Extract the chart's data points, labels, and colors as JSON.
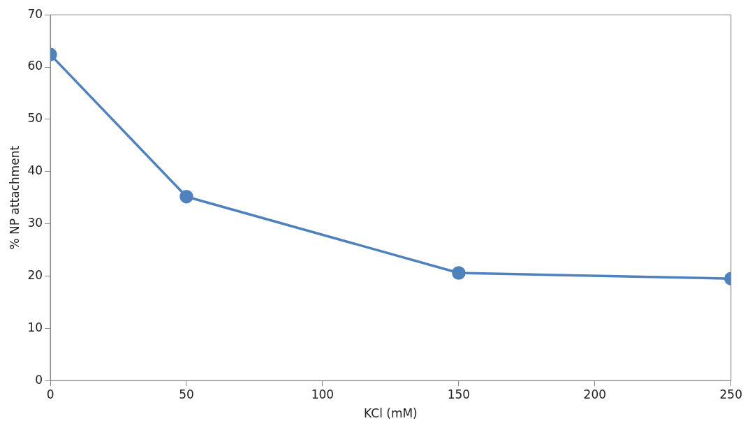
{
  "chart_data": {
    "type": "line",
    "xlabel": "KCl (mM)",
    "ylabel": "% NP attachment",
    "x": [
      0,
      50,
      150,
      250
    ],
    "series": [
      {
        "color": "#4f81bd",
        "values": [
          62.4,
          35.2,
          20.6,
          19.5
        ]
      }
    ],
    "xlim": [
      0,
      250
    ],
    "xticks": [
      0,
      50,
      100,
      150,
      200,
      250
    ],
    "ylim": [
      0,
      70
    ],
    "yticks": [
      0,
      10,
      20,
      30,
      40,
      50,
      60,
      70
    ],
    "grid": false,
    "legend": false,
    "marker": "circle",
    "line_style": "solid"
  }
}
